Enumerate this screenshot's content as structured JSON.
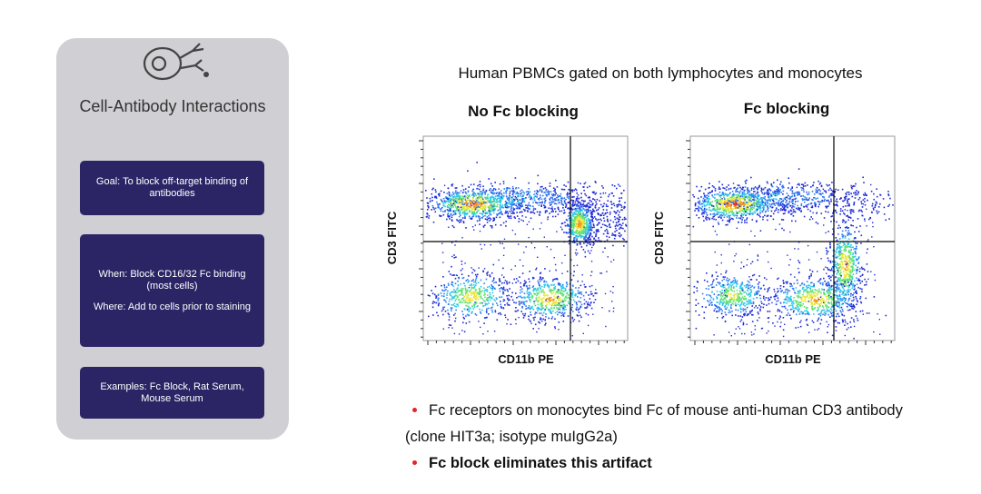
{
  "panel": {
    "title": "Cell-Antibody Interactions",
    "boxes": [
      [
        "Goal: To block off-target binding of antibodies"
      ],
      [
        "When: Block CD16/32 Fc binding (most cells)",
        "Where: Add to cells prior to staining"
      ],
      [
        "Examples: Fc Block, Rat Serum, Mouse Serum"
      ]
    ]
  },
  "figure": {
    "heading": "Human PBMCs gated on both lymphocytes and monocytes",
    "plots": [
      {
        "title": "No Fc blocking",
        "y_label": "CD3 FITC",
        "x_label": "CD11b PE"
      },
      {
        "title": "Fc blocking",
        "y_label": "CD3 FITC",
        "x_label": "CD11b PE"
      }
    ]
  },
  "bullets": [
    {
      "text": "Fc receptors on monocytes bind Fc of mouse anti-human CD3 antibody (clone HIT3a; isotype muIgG2a)",
      "bold": false
    },
    {
      "text": "Fc block eliminates this artifact",
      "bold": true
    }
  ]
}
